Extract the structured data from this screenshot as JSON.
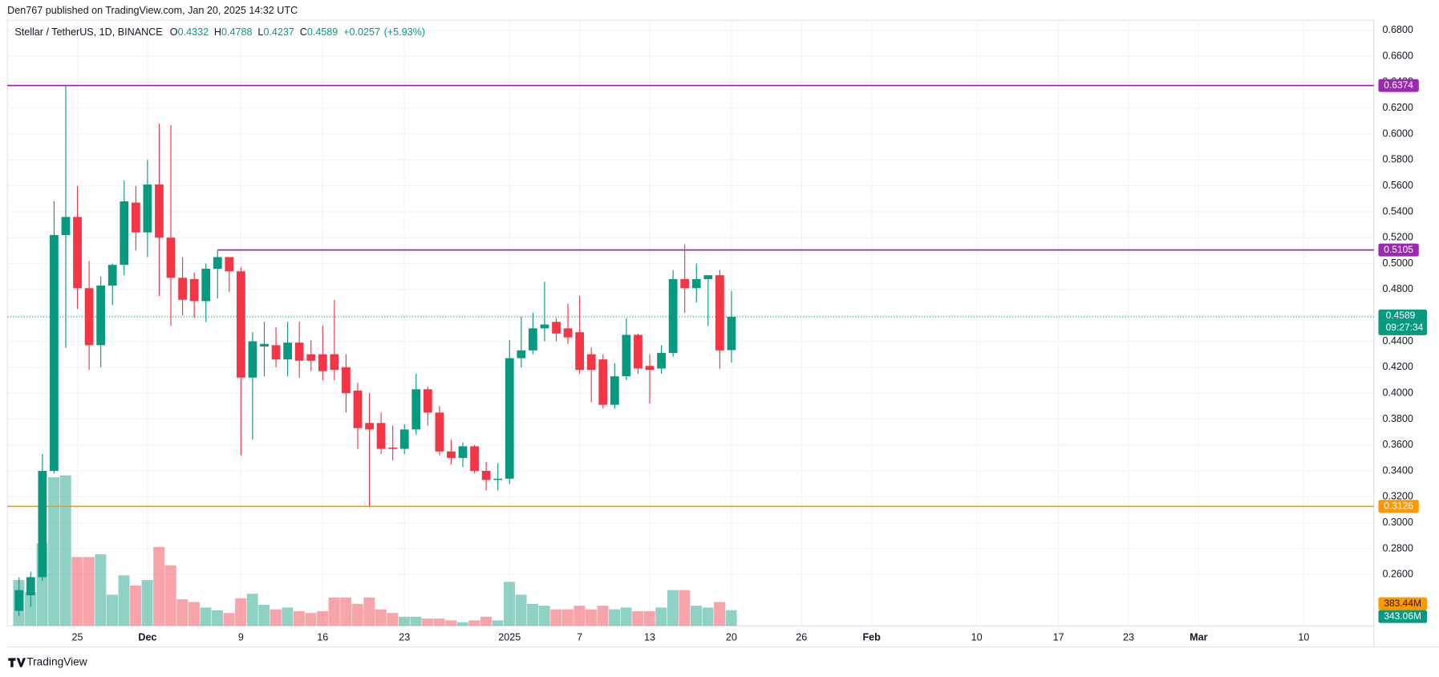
{
  "header": {
    "published": "Den767 published on TradingView.com, Jan 20, 2025 14:32 UTC"
  },
  "chart_data": {
    "type": "candlestick",
    "title": "Stellar / TetherUS, 1D, BINANCE",
    "ohlc": [
      {
        "key": "O",
        "value": 0.4332
      },
      {
        "key": "H",
        "value": 0.4788
      },
      {
        "key": "L",
        "value": 0.4237
      },
      {
        "key": "C",
        "value": 0.4589
      }
    ],
    "change": {
      "value": 0.0257,
      "label": "+0.0257"
    },
    "change_pct": {
      "value": 5.93,
      "label": "(+5.93%)"
    },
    "x": [
      "2024-11-20",
      "2024-11-21",
      "2024-11-22",
      "2024-11-23",
      "2024-11-24",
      "2024-11-25",
      "2024-11-26",
      "2024-11-27",
      "2024-11-28",
      "2024-11-29",
      "2024-11-30",
      "2024-12-01",
      "2024-12-02",
      "2024-12-03",
      "2024-12-04",
      "2024-12-05",
      "2024-12-06",
      "2024-12-07",
      "2024-12-08",
      "2024-12-09",
      "2024-12-10",
      "2024-12-11",
      "2024-12-12",
      "2024-12-13",
      "2024-12-14",
      "2024-12-15",
      "2024-12-16",
      "2024-12-17",
      "2024-12-18",
      "2024-12-19",
      "2024-12-20",
      "2024-12-21",
      "2024-12-22",
      "2024-12-23",
      "2024-12-24",
      "2024-12-25",
      "2024-12-26",
      "2024-12-27",
      "2024-12-28",
      "2024-12-29",
      "2024-12-30",
      "2024-12-31",
      "2025-01-01",
      "2025-01-02",
      "2025-01-03",
      "2025-01-04",
      "2025-01-05",
      "2025-01-06",
      "2025-01-07",
      "2025-01-08",
      "2025-01-09",
      "2025-01-10",
      "2025-01-11",
      "2025-01-12",
      "2025-01-13",
      "2025-01-14",
      "2025-01-15",
      "2025-01-16",
      "2025-01-17",
      "2025-01-18",
      "2025-01-19",
      "2025-01-20"
    ],
    "open": [
      0.232,
      0.244,
      0.258,
      0.34,
      0.522,
      0.536,
      0.481,
      0.437,
      0.483,
      0.499,
      0.547,
      0.524,
      0.561,
      0.52,
      0.489,
      0.488,
      0.471,
      0.496,
      0.505,
      0.494,
      0.412,
      0.436,
      0.437,
      0.426,
      0.439,
      0.43,
      0.43,
      0.43,
      0.42,
      0.402,
      0.377,
      0.377,
      0.358,
      0.357,
      0.372,
      0.403,
      0.385,
      0.355,
      0.35,
      0.359,
      0.34,
      0.333,
      0.334,
      0.427,
      0.433,
      0.45,
      0.455,
      0.45,
      0.447,
      0.43,
      0.426,
      0.391,
      0.413,
      0.445,
      0.421,
      0.419,
      0.431,
      0.488,
      0.481,
      0.488,
      0.491,
      0.4332
    ],
    "high": [
      0.258,
      0.262,
      0.353,
      0.548,
      0.637,
      0.56,
      0.502,
      0.49,
      0.5,
      0.564,
      0.56,
      0.58,
      0.608,
      0.607,
      0.505,
      0.493,
      0.5,
      0.51,
      0.505,
      0.497,
      0.447,
      0.455,
      0.451,
      0.455,
      0.455,
      0.441,
      0.452,
      0.472,
      0.43,
      0.408,
      0.4,
      0.385,
      0.375,
      0.376,
      0.415,
      0.405,
      0.39,
      0.364,
      0.362,
      0.36,
      0.347,
      0.346,
      0.441,
      0.459,
      0.462,
      0.486,
      0.458,
      0.469,
      0.475,
      0.435,
      0.43,
      0.423,
      0.458,
      0.446,
      0.43,
      0.437,
      0.495,
      0.515,
      0.5,
      0.491,
      0.495,
      0.4788
    ],
    "low": [
      0.228,
      0.235,
      0.255,
      0.338,
      0.435,
      0.465,
      0.418,
      0.42,
      0.468,
      0.491,
      0.51,
      0.505,
      0.475,
      0.452,
      0.46,
      0.458,
      0.455,
      0.473,
      0.478,
      0.352,
      0.364,
      0.413,
      0.42,
      0.413,
      0.412,
      0.417,
      0.41,
      0.41,
      0.385,
      0.357,
      0.3126,
      0.353,
      0.348,
      0.353,
      0.368,
      0.375,
      0.352,
      0.345,
      0.343,
      0.338,
      0.325,
      0.325,
      0.33,
      0.42,
      0.43,
      0.44,
      0.44,
      0.438,
      0.415,
      0.393,
      0.388,
      0.388,
      0.41,
      0.415,
      0.392,
      0.415,
      0.428,
      0.462,
      0.47,
      0.452,
      0.419,
      0.4237
    ],
    "close": [
      0.248,
      0.258,
      0.34,
      0.522,
      0.536,
      0.481,
      0.437,
      0.483,
      0.499,
      0.548,
      0.524,
      0.561,
      0.52,
      0.489,
      0.472,
      0.471,
      0.496,
      0.505,
      0.494,
      0.412,
      0.44,
      0.438,
      0.426,
      0.439,
      0.425,
      0.425,
      0.417,
      0.418,
      0.4,
      0.373,
      0.372,
      0.357,
      0.357,
      0.372,
      0.403,
      0.385,
      0.355,
      0.35,
      0.359,
      0.34,
      0.333,
      0.334,
      0.427,
      0.433,
      0.45,
      0.453,
      0.446,
      0.443,
      0.418,
      0.418,
      0.391,
      0.413,
      0.445,
      0.419,
      0.418,
      0.431,
      0.488,
      0.481,
      0.488,
      0.491,
      0.433,
      0.4589
    ],
    "up_color": "#089981",
    "down_color": "#f23645",
    "volume": {
      "values": [
        1000,
        740,
        1800,
        3240,
        3280,
        1500,
        1500,
        1560,
        680,
        1100,
        880,
        1000,
        1720,
        1320,
        580,
        520,
        400,
        340,
        280,
        600,
        700,
        460,
        360,
        400,
        320,
        280,
        320,
        620,
        620,
        480,
        620,
        360,
        280,
        200,
        200,
        160,
        160,
        120,
        80,
        120,
        200,
        120,
        960,
        680,
        480,
        440,
        360,
        360,
        440,
        360,
        440,
        360,
        400,
        320,
        320,
        400,
        780,
        780,
        440,
        400,
        520,
        343.06
      ],
      "ylim": [
        0,
        3300
      ],
      "last_label": "343.06M",
      "ma": {
        "value": 383.44,
        "label": "383.44M"
      }
    },
    "levels": [
      {
        "value": 0.6374,
        "color": "#9c27b0"
      },
      {
        "value": 0.5105,
        "color": "#9c27b0",
        "from": "2024-12-07"
      },
      {
        "value": 0.3126,
        "color": "#ff9800"
      }
    ],
    "last_price": {
      "value": 0.4589,
      "countdown": "09:27:34"
    },
    "ylim": [
      0.2204,
      0.6878
    ],
    "yticks": [
      {
        "value": 0.26,
        "label": "0.2600"
      },
      {
        "value": 0.28,
        "label": "0.2800"
      },
      {
        "value": 0.3,
        "label": "0.3000"
      },
      {
        "value": 0.32,
        "label": "0.3200"
      },
      {
        "value": 0.34,
        "label": "0.3400"
      },
      {
        "value": 0.36,
        "label": "0.3600"
      },
      {
        "value": 0.38,
        "label": "0.3800"
      },
      {
        "value": 0.4,
        "label": "0.4000"
      },
      {
        "value": 0.42,
        "label": "0.4200"
      },
      {
        "value": 0.44,
        "label": "0.4400"
      },
      {
        "value": 0.46,
        "label": "0.4600"
      },
      {
        "value": 0.48,
        "label": "0.4800"
      },
      {
        "value": 0.5,
        "label": "0.5000"
      },
      {
        "value": 0.52,
        "label": "0.5200"
      },
      {
        "value": 0.54,
        "label": "0.5400"
      },
      {
        "value": 0.56,
        "label": "0.5600"
      },
      {
        "value": 0.58,
        "label": "0.5800"
      },
      {
        "value": 0.6,
        "label": "0.6000"
      },
      {
        "value": 0.62,
        "label": "0.6200"
      },
      {
        "value": 0.64,
        "label": "0.6400"
      },
      {
        "value": 0.66,
        "label": "0.6600"
      },
      {
        "value": 0.68,
        "label": "0.6800"
      }
    ],
    "xlim": [
      "2024-11-19",
      "2025-03-16"
    ],
    "xticks": [
      {
        "value": "2024-11-25",
        "label": "25"
      },
      {
        "value": "2024-12-01",
        "label": "Dec"
      },
      {
        "value": "2024-12-09",
        "label": "9"
      },
      {
        "value": "2024-12-16",
        "label": "16"
      },
      {
        "value": "2024-12-23",
        "label": "23"
      },
      {
        "value": "2025-01-01",
        "label": "2025"
      },
      {
        "value": "2025-01-07",
        "label": "7"
      },
      {
        "value": "2025-01-13",
        "label": "13"
      },
      {
        "value": "2025-01-20",
        "label": "20"
      },
      {
        "value": "2025-01-26",
        "label": "26"
      },
      {
        "value": "2025-02-01",
        "label": "Feb"
      },
      {
        "value": "2025-02-10",
        "label": "10"
      },
      {
        "value": "2025-02-17",
        "label": "17"
      },
      {
        "value": "2025-02-23",
        "label": "23"
      },
      {
        "value": "2025-03-01",
        "label": "Mar"
      },
      {
        "value": "2025-03-10",
        "label": "10"
      }
    ],
    "grid": true
  },
  "footer": {
    "brand": "TradingView"
  }
}
